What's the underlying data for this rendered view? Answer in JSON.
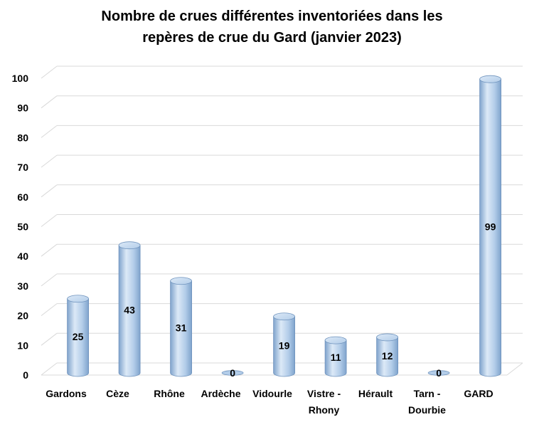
{
  "chart_data": {
    "type": "bar",
    "style": "3d-cylinder",
    "title_line1": "Nombre de crues différentes inventoriées dans les",
    "title_line2": "repères de crue du Gard (janvier 2023)",
    "categories": [
      [
        "Gardons"
      ],
      [
        "Cèze"
      ],
      [
        "Rhône"
      ],
      [
        "Ardèche"
      ],
      [
        "Vidourle"
      ],
      [
        "Vistre -",
        "Rhony"
      ],
      [
        "Hérault"
      ],
      [
        "Tarn -",
        "Dourbie"
      ],
      [
        "GARD"
      ]
    ],
    "values": [
      25,
      43,
      31,
      0,
      19,
      11,
      12,
      0,
      99
    ],
    "ylim": [
      0,
      100
    ],
    "yticks": [
      0,
      10,
      20,
      30,
      40,
      50,
      60,
      70,
      80,
      90,
      100
    ],
    "grid": true,
    "legend": "none",
    "colors": {
      "bar_light": "#dce9f7",
      "bar_mid": "#b3cde9",
      "bar_dark": "#7fa3cc",
      "bar_edge": "#6f93bd",
      "grid": "#d9d9d9"
    }
  }
}
